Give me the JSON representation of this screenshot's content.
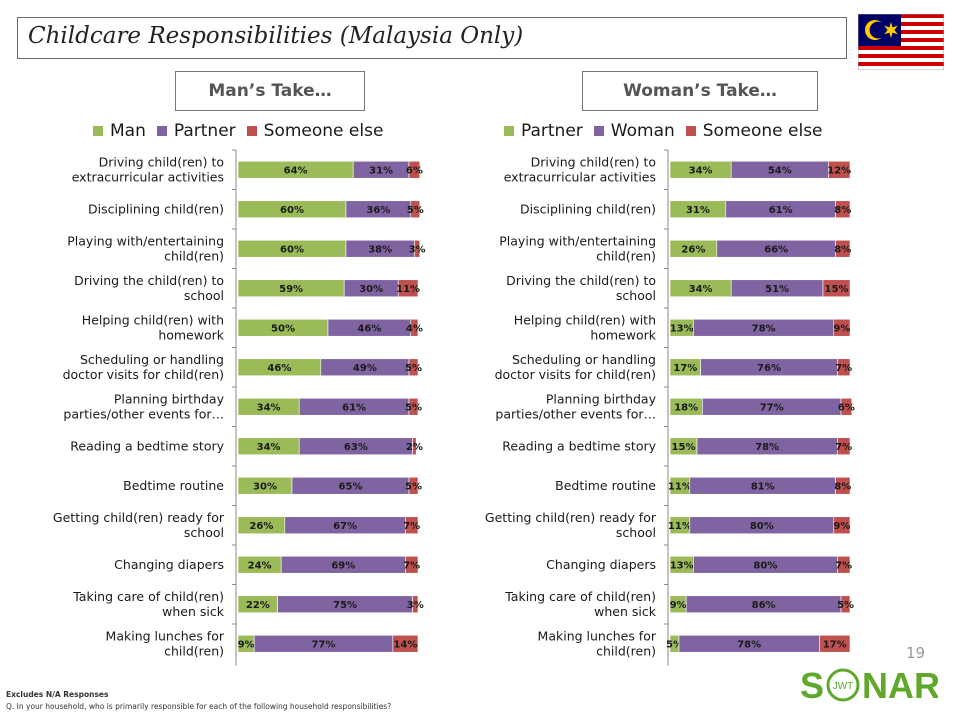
{
  "title": "Childcare Responsibilities (Malaysia Only)",
  "colors": {
    "green": "#9bbb59",
    "purple": "#8064a2",
    "red": "#c0504d",
    "logo": "#5fa82c"
  },
  "mans_take": {
    "heading": "Man’s Take…",
    "chart_data": {
      "type": "bar",
      "orientation": "horizontal",
      "stacked": "100%",
      "categories": [
        "Driving child(ren) to extracurricular activities",
        "Disciplining child(ren)",
        "Playing with/entertaining child(ren)",
        "Driving the child(ren) to school",
        "Helping child(ren) with homework",
        "Scheduling or handling doctor visits for child(ren)",
        "Planning birthday parties/other events for…",
        "Reading a bedtime story",
        "Bedtime routine",
        "Getting child(ren) ready for school",
        "Changing diapers",
        "Taking care of child(ren) when sick",
        "Making lunches for child(ren)"
      ],
      "category_lines": [
        [
          "Driving child(ren) to",
          "extracurricular activities"
        ],
        [
          "Disciplining child(ren)"
        ],
        [
          "Playing with/entertaining",
          "child(ren)"
        ],
        [
          "Driving the child(ren) to",
          "school"
        ],
        [
          "Helping child(ren) with",
          "homework"
        ],
        [
          "Scheduling or handling",
          "doctor visits for child(ren)"
        ],
        [
          "Planning birthday",
          "parties/other events for…"
        ],
        [
          "Reading a bedtime story"
        ],
        [
          "Bedtime routine"
        ],
        [
          "Getting child(ren) ready for",
          "school"
        ],
        [
          "Changing diapers"
        ],
        [
          "Taking care of child(ren)",
          "when sick"
        ],
        [
          "Making lunches for",
          "child(ren)"
        ]
      ],
      "series": [
        {
          "name": "Man",
          "color": "#9bbb59",
          "values": [
            64,
            60,
            60,
            59,
            50,
            46,
            34,
            34,
            30,
            26,
            24,
            22,
            9
          ]
        },
        {
          "name": "Partner",
          "color": "#8064a2",
          "values": [
            31,
            36,
            38,
            30,
            46,
            49,
            61,
            63,
            65,
            67,
            69,
            75,
            77
          ]
        },
        {
          "name": "Someone else",
          "color": "#c0504d",
          "values": [
            6,
            5,
            3,
            11,
            4,
            5,
            5,
            2,
            5,
            7,
            7,
            3,
            14
          ]
        }
      ],
      "value_suffix": "%",
      "legend": "top"
    }
  },
  "womans_take": {
    "heading": "Woman’s Take…",
    "chart_data": {
      "type": "bar",
      "orientation": "horizontal",
      "stacked": "100%",
      "categories": [
        "Driving child(ren) to extracurricular activities",
        "Disciplining child(ren)",
        "Playing with/entertaining child(ren)",
        "Driving the child(ren) to school",
        "Helping child(ren) with homework",
        "Scheduling or handling doctor visits for child(ren)",
        "Planning birthday parties/other events for…",
        "Reading a bedtime story",
        "Bedtime routine",
        "Getting child(ren) ready for school",
        "Changing diapers",
        "Taking care of child(ren) when sick",
        "Making lunches for child(ren)"
      ],
      "category_lines": [
        [
          "Driving child(ren) to",
          "extracurricular activities"
        ],
        [
          "Disciplining child(ren)"
        ],
        [
          "Playing with/entertaining",
          "child(ren)"
        ],
        [
          "Driving the child(ren) to",
          "school"
        ],
        [
          "Helping child(ren) with",
          "homework"
        ],
        [
          "Scheduling or handling",
          "doctor visits for child(ren)"
        ],
        [
          "Planning birthday",
          "parties/other events for…"
        ],
        [
          "Reading a bedtime story"
        ],
        [
          "Bedtime routine"
        ],
        [
          "Getting child(ren) ready for",
          "school"
        ],
        [
          "Changing diapers"
        ],
        [
          "Taking care of child(ren)",
          "when sick"
        ],
        [
          "Making lunches for",
          "child(ren)"
        ]
      ],
      "series": [
        {
          "name": "Partner",
          "color": "#9bbb59",
          "values": [
            34,
            31,
            26,
            34,
            13,
            17,
            18,
            15,
            11,
            11,
            13,
            9,
            5
          ]
        },
        {
          "name": "Woman",
          "color": "#8064a2",
          "values": [
            54,
            61,
            66,
            51,
            78,
            76,
            77,
            78,
            81,
            80,
            80,
            86,
            78
          ]
        },
        {
          "name": "Someone else",
          "color": "#c0504d",
          "values": [
            12,
            8,
            8,
            15,
            9,
            7,
            6,
            7,
            8,
            9,
            7,
            5,
            17
          ]
        }
      ],
      "value_suffix": "%",
      "legend": "top"
    }
  },
  "page_number": "19",
  "footnote_1": "Excludes N/A Responses",
  "footnote_2": "Q. In your household, who is primarily responsible for each of the following household responsibilities?",
  "logo": {
    "text_left": "S",
    "text_right": "NAR",
    "ring_text": "JWT"
  },
  "flag_icon": "malaysia-flag-icon"
}
